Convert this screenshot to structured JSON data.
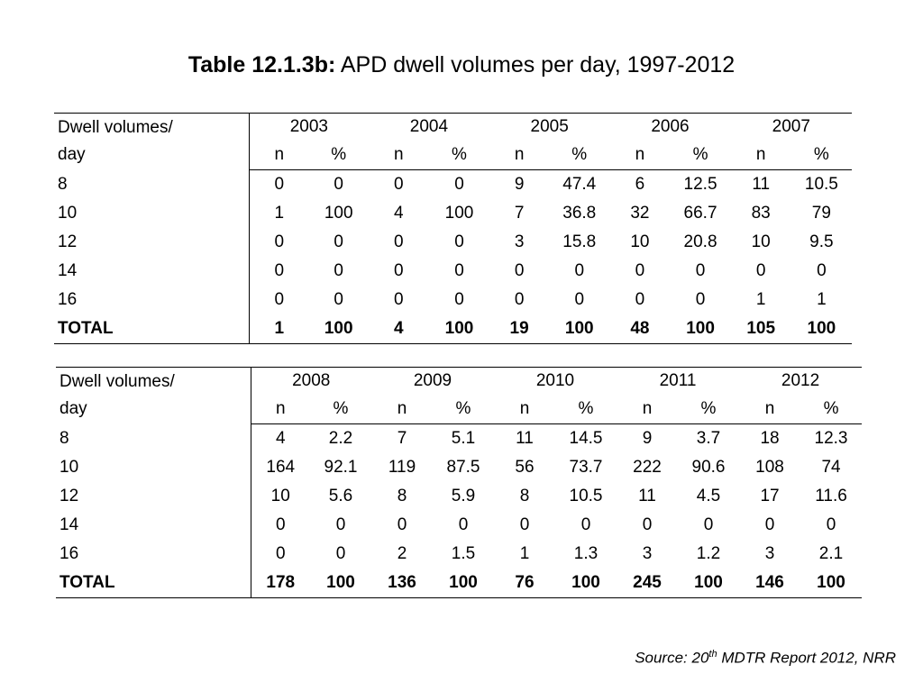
{
  "title": {
    "bold": "Table 12.1.3b:",
    "rest": " APD dwell volumes per day, 1997-2012"
  },
  "header_label_line1": "Dwell volumes/",
  "header_label_line2": "day",
  "col_n": "n",
  "col_pct": "%",
  "tables": [
    {
      "years": [
        "2003",
        "2004",
        "2005",
        "2006",
        "2007"
      ],
      "rows": [
        {
          "label": "8",
          "cells": [
            "0",
            "0",
            "0",
            "0",
            "9",
            "47.4",
            "6",
            "12.5",
            "11",
            "10.5"
          ]
        },
        {
          "label": "10",
          "cells": [
            "1",
            "100",
            "4",
            "100",
            "7",
            "36.8",
            "32",
            "66.7",
            "83",
            "79"
          ]
        },
        {
          "label": "12",
          "cells": [
            "0",
            "0",
            "0",
            "0",
            "3",
            "15.8",
            "10",
            "20.8",
            "10",
            "9.5"
          ]
        },
        {
          "label": "14",
          "cells": [
            "0",
            "0",
            "0",
            "0",
            "0",
            "0",
            "0",
            "0",
            "0",
            "0"
          ]
        },
        {
          "label": "16",
          "cells": [
            "0",
            "0",
            "0",
            "0",
            "0",
            "0",
            "0",
            "0",
            "1",
            "1"
          ]
        },
        {
          "label": "TOTAL",
          "cells": [
            "1",
            "100",
            "4",
            "100",
            "19",
            "100",
            "48",
            "100",
            "105",
            "100"
          ]
        }
      ]
    },
    {
      "years": [
        "2008",
        "2009",
        "2010",
        "2011",
        "2012"
      ],
      "rows": [
        {
          "label": "8",
          "cells": [
            "4",
            "2.2",
            "7",
            "5.1",
            "11",
            "14.5",
            "9",
            "3.7",
            "18",
            "12.3"
          ]
        },
        {
          "label": "10",
          "cells": [
            "164",
            "92.1",
            "119",
            "87.5",
            "56",
            "73.7",
            "222",
            "90.6",
            "108",
            "74"
          ]
        },
        {
          "label": "12",
          "cells": [
            "10",
            "5.6",
            "8",
            "5.9",
            "8",
            "10.5",
            "11",
            "4.5",
            "17",
            "11.6"
          ]
        },
        {
          "label": "14",
          "cells": [
            "0",
            "0",
            "0",
            "0",
            "0",
            "0",
            "0",
            "0",
            "0",
            "0"
          ]
        },
        {
          "label": "16",
          "cells": [
            "0",
            "0",
            "2",
            "1.5",
            "1",
            "1.3",
            "3",
            "1.2",
            "3",
            "2.1"
          ]
        },
        {
          "label": "TOTAL",
          "cells": [
            "178",
            "100",
            "136",
            "100",
            "76",
            "100",
            "245",
            "100",
            "146",
            "100"
          ]
        }
      ]
    }
  ],
  "source": {
    "prefix": "Source: 20",
    "sup": "th",
    "suffix": " MDTR Report 2012, NRR"
  }
}
